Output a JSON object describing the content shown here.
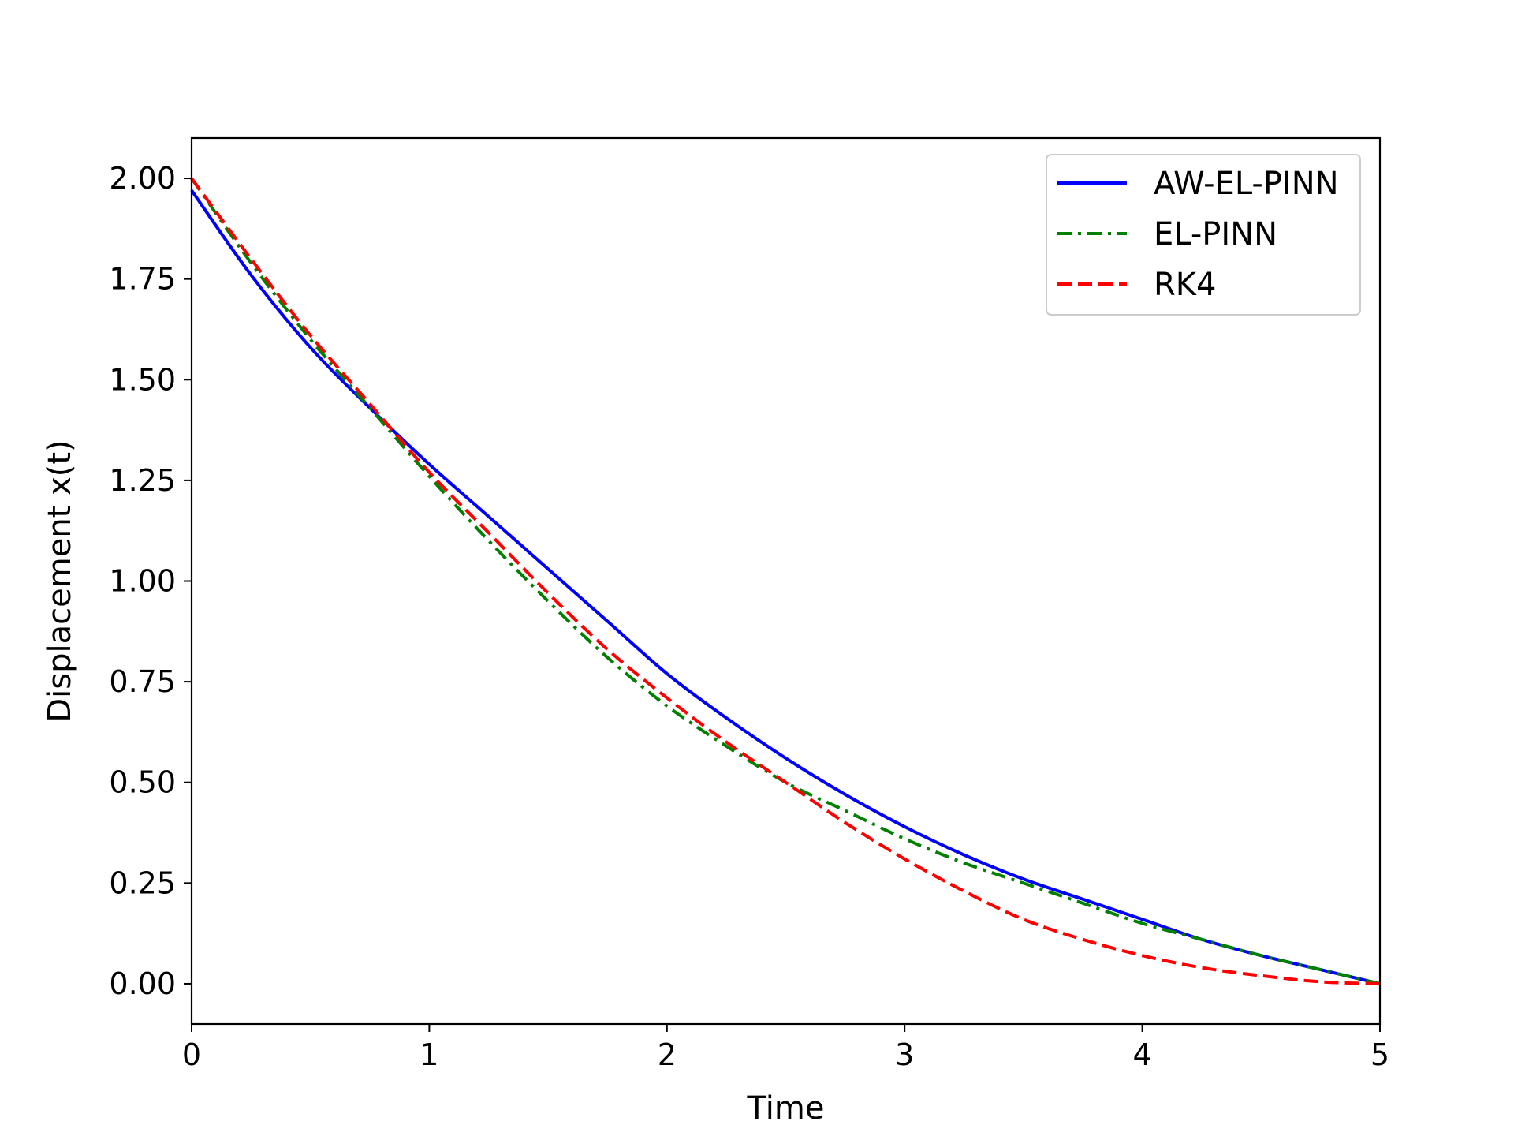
{
  "chart_data": {
    "type": "line",
    "title": "",
    "xlabel": "Time",
    "ylabel": "Displacement x(t)",
    "xlim": [
      0,
      5
    ],
    "ylim": [
      -0.1,
      2.1
    ],
    "xticks": [
      0,
      1,
      2,
      3,
      4,
      5
    ],
    "xtick_labels": [
      "0",
      "1",
      "2",
      "3",
      "4",
      "5"
    ],
    "yticks": [
      0.0,
      0.25,
      0.5,
      0.75,
      1.0,
      1.25,
      1.5,
      1.75,
      2.0
    ],
    "ytick_labels": [
      "0.00",
      "0.25",
      "0.50",
      "0.75",
      "1.00",
      "1.25",
      "1.50",
      "1.75",
      "2.00"
    ],
    "grid": false,
    "legend_position": "top-right",
    "x": [
      0,
      0.25,
      0.5,
      0.75,
      1.0,
      1.25,
      1.5,
      1.75,
      2.0,
      2.25,
      2.5,
      2.75,
      3.0,
      3.25,
      3.5,
      3.75,
      4.0,
      4.25,
      4.5,
      4.75,
      5.0
    ],
    "series": [
      {
        "name": "AW-EL-PINN",
        "color": "#0000ff",
        "style": "solid",
        "values": [
          1.97,
          1.76,
          1.58,
          1.43,
          1.29,
          1.16,
          1.03,
          0.9,
          0.77,
          0.66,
          0.56,
          0.47,
          0.39,
          0.32,
          0.26,
          0.21,
          0.16,
          0.11,
          0.07,
          0.035,
          0.0
        ]
      },
      {
        "name": "EL-PINN",
        "color": "#008000",
        "style": "dashdot",
        "values": [
          2.0,
          1.79,
          1.6,
          1.43,
          1.26,
          1.1,
          0.95,
          0.81,
          0.69,
          0.59,
          0.5,
          0.43,
          0.36,
          0.3,
          0.25,
          0.2,
          0.15,
          0.11,
          0.07,
          0.035,
          0.0
        ]
      },
      {
        "name": "RK4",
        "color": "#ff0000",
        "style": "dashed",
        "values": [
          2.0,
          1.8,
          1.61,
          1.44,
          1.27,
          1.12,
          0.97,
          0.83,
          0.71,
          0.6,
          0.5,
          0.4,
          0.31,
          0.23,
          0.16,
          0.11,
          0.07,
          0.04,
          0.02,
          0.005,
          0.0
        ]
      }
    ]
  }
}
